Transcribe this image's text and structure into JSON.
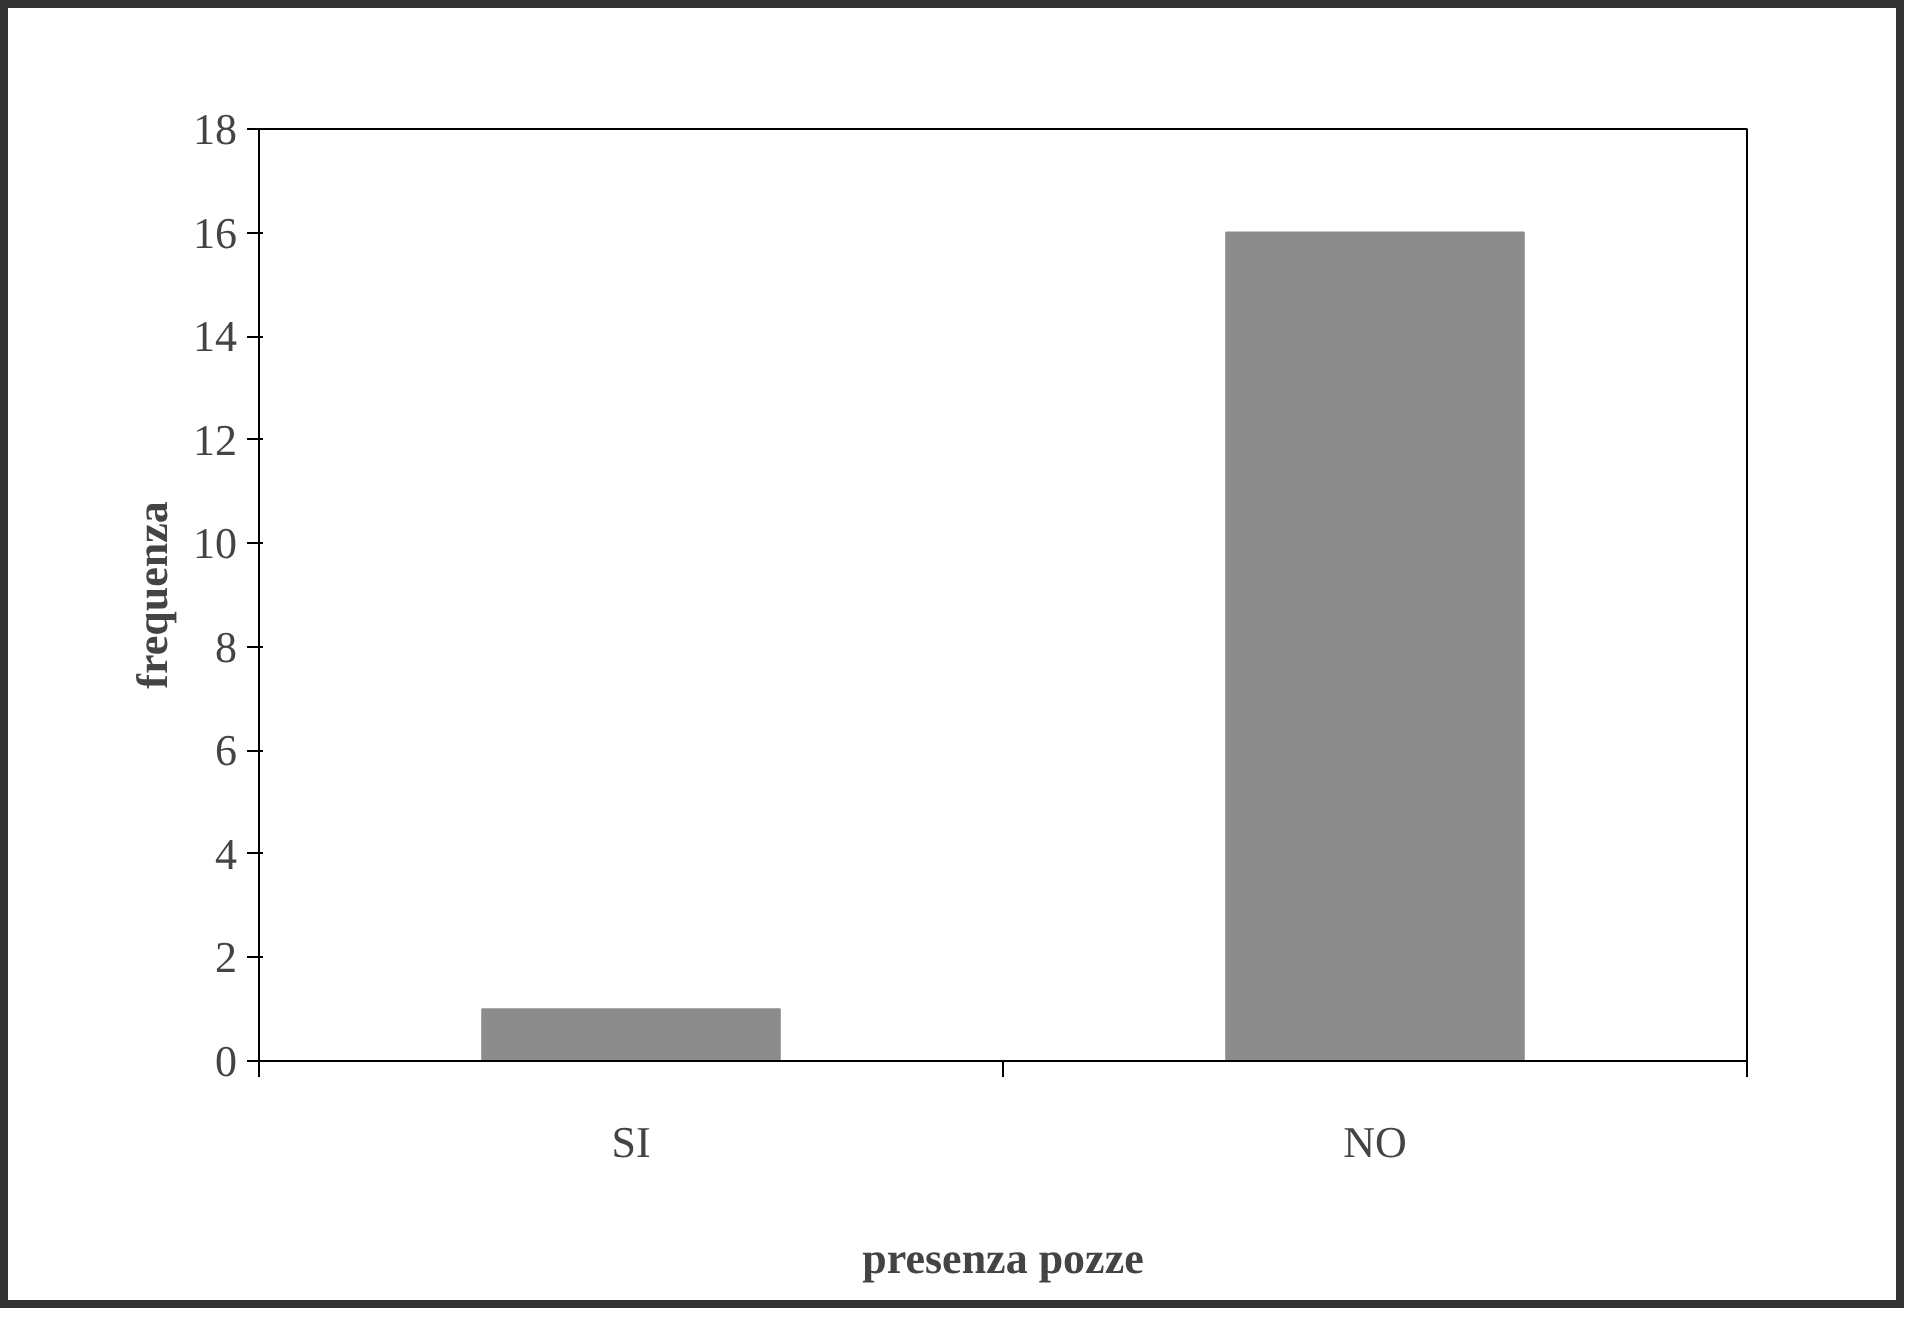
{
  "chart_data": {
    "type": "bar",
    "xlabel": "presenza pozze",
    "ylabel": "frequenza",
    "categories": [
      "SI",
      "NO"
    ],
    "values": [
      1,
      16
    ],
    "color": "#8c8c8c",
    "ylim": [
      0,
      18
    ],
    "yticks": [
      0,
      2,
      4,
      6,
      8,
      10,
      12,
      14,
      16,
      18
    ],
    "grid": false
  }
}
